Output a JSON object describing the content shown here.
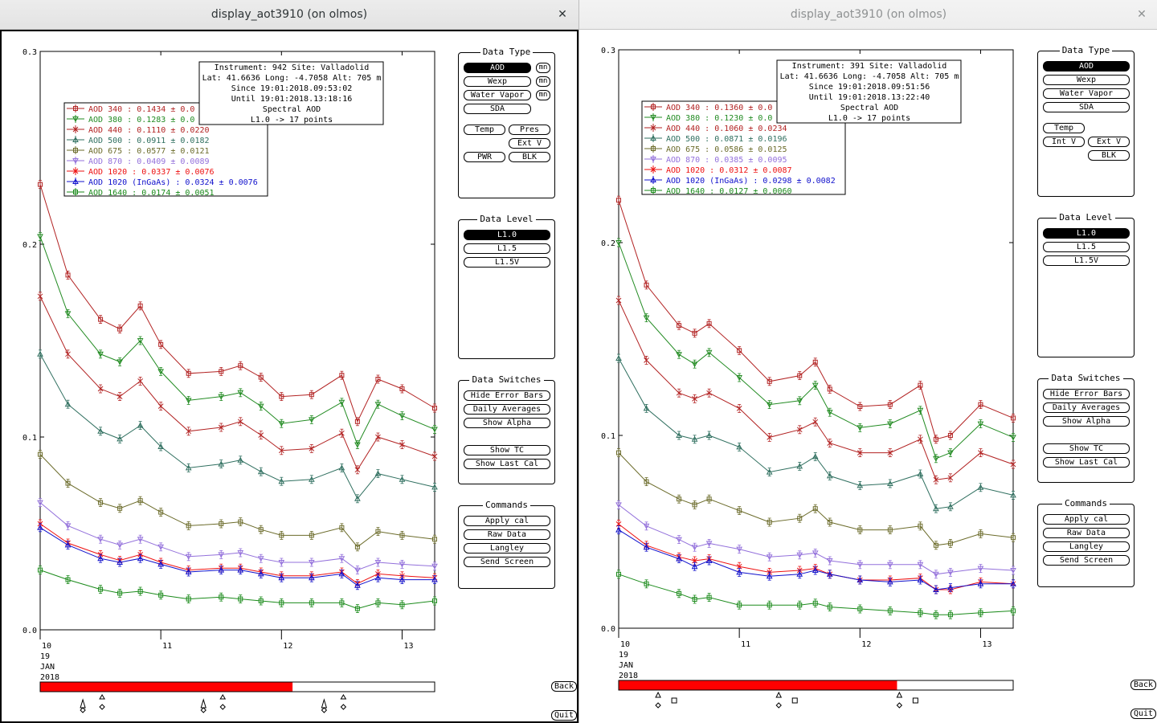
{
  "windows": [
    {
      "id": "L",
      "title": "display_aot3910 (on olmos)",
      "info": {
        "line1": "Instrument: 942 Site: Valladolid",
        "line2": "Lat: 41.6636 Long: -4.7058 Alt: 705 m",
        "line3": "Since 19:01:2018.09:53:02",
        "line4": "Until 19:01:2018.13:18:16",
        "line5": "Spectral AOD",
        "line6": "L1.0 -> 17 points"
      },
      "legend": [
        "AOD 340  : 0.1434 ± 0.0",
        "AOD 380  : 0.1283 ± 0.0",
        "AOD 440  : 0.1110 ± 0.0220",
        "AOD 500  : 0.0911 ± 0.0182",
        "AOD 675  : 0.0577 ± 0.0121",
        "AOD 870  : 0.0409 ± 0.0089",
        "AOD 1020  : 0.0337 ± 0.0076",
        "AOD 1020 (InGaAs)  : 0.0324 ± 0.0076",
        "AOD 1640  : 0.0174 ± 0.0051"
      ],
      "data_type_buttons": [
        {
          "label": "AOD",
          "on": true,
          "mn": "mn"
        },
        {
          "label": "Wexp",
          "on": false,
          "mn": "mn"
        },
        {
          "label": "Water Vapor",
          "on": false,
          "mn": "mn"
        },
        {
          "label": "SDA",
          "on": false,
          "mn": ""
        }
      ],
      "data_type_extra": [
        "Temp",
        "Pres",
        "Ext V",
        "PWR",
        "BLK"
      ],
      "progress": 0.64,
      "markers": "triangles-diamonds",
      "chart_data": {
        "type": "line",
        "y_ticks": [
          "0.3",
          "0.2",
          "0.1",
          "0.0"
        ],
        "ylim": [
          0,
          0.3
        ],
        "x_ticks": [
          "10",
          "11",
          "12",
          "13"
        ],
        "x_date": [
          "19",
          "JAN",
          "2018"
        ],
        "xlim": [
          10.0,
          13.27
        ],
        "x": [
          10.0,
          10.23,
          10.5,
          10.66,
          10.83,
          11.0,
          11.23,
          11.5,
          11.66,
          11.83,
          12.0,
          12.25,
          12.5,
          12.63,
          12.8,
          13.0,
          13.27
        ],
        "series": [
          {
            "name": "AOD 340",
            "color": "#b22222",
            "marker": "square",
            "values": [
              0.231,
              0.184,
              0.161,
              0.156,
              0.168,
              0.148,
              0.133,
              0.134,
              0.137,
              0.131,
              0.121,
              0.122,
              0.132,
              0.108,
              0.13,
              0.125,
              0.115
            ]
          },
          {
            "name": "AOD 380",
            "color": "#228b22",
            "marker": "tri-down",
            "values": [
              0.204,
              0.164,
              0.143,
              0.139,
              0.15,
              0.134,
              0.119,
              0.121,
              0.123,
              0.116,
              0.107,
              0.109,
              0.118,
              0.096,
              0.117,
              0.111,
              0.104
            ]
          },
          {
            "name": "AOD 440",
            "color": "#b22222",
            "marker": "x",
            "values": [
              0.173,
              0.143,
              0.125,
              0.121,
              0.129,
              0.116,
              0.103,
              0.105,
              0.108,
              0.101,
              0.093,
              0.094,
              0.102,
              0.083,
              0.1,
              0.096,
              0.09
            ]
          },
          {
            "name": "AOD 500",
            "color": "#2f6f5f",
            "marker": "tri-up",
            "values": [
              0.143,
              0.117,
              0.103,
              0.099,
              0.106,
              0.095,
              0.084,
              0.086,
              0.088,
              0.082,
              0.077,
              0.078,
              0.084,
              0.068,
              0.081,
              0.078,
              0.074
            ]
          },
          {
            "name": "AOD 675",
            "color": "#6b6b2a",
            "marker": "square",
            "values": [
              0.091,
              0.076,
              0.066,
              0.063,
              0.067,
              0.061,
              0.054,
              0.055,
              0.056,
              0.052,
              0.049,
              0.049,
              0.053,
              0.043,
              0.051,
              0.049,
              0.047
            ]
          },
          {
            "name": "AOD 870",
            "color": "#9370db",
            "marker": "tri-down",
            "values": [
              0.066,
              0.054,
              0.047,
              0.044,
              0.047,
              0.043,
              0.038,
              0.039,
              0.04,
              0.037,
              0.035,
              0.035,
              0.037,
              0.031,
              0.035,
              0.034,
              0.033
            ]
          },
          {
            "name": "AOD 1020",
            "color": "#ee1111",
            "marker": "x",
            "values": [
              0.055,
              0.045,
              0.039,
              0.036,
              0.039,
              0.035,
              0.031,
              0.032,
              0.032,
              0.03,
              0.028,
              0.028,
              0.03,
              0.024,
              0.029,
              0.028,
              0.027
            ]
          },
          {
            "name": "AOD 1020 (InGaAs)",
            "color": "#1010cc",
            "marker": "tri-up",
            "values": [
              0.053,
              0.044,
              0.037,
              0.035,
              0.037,
              0.034,
              0.03,
              0.031,
              0.031,
              0.029,
              0.027,
              0.027,
              0.029,
              0.023,
              0.027,
              0.026,
              0.026
            ]
          },
          {
            "name": "AOD 1640",
            "color": "#1a8a1a",
            "marker": "square",
            "values": [
              0.031,
              0.026,
              0.021,
              0.019,
              0.02,
              0.018,
              0.016,
              0.017,
              0.016,
              0.015,
              0.014,
              0.014,
              0.014,
              0.011,
              0.014,
              0.013,
              0.015
            ]
          }
        ]
      }
    },
    {
      "id": "R",
      "title": "display_aot3910 (on olmos)",
      "info": {
        "line1": "Instrument: 391 Site: Valladolid",
        "line2": "Lat: 41.6636 Long: -4.7058 Alt: 705 m",
        "line3": "Since 19:01:2018.09:51:56",
        "line4": "Until 19:01:2018.13:22:40",
        "line5": "Spectral AOD",
        "line6": "L1.0 -> 17 points"
      },
      "legend": [
        "AOD 340  : 0.1360 ± 0.0",
        "AOD 380  : 0.1230 ± 0.0",
        "AOD 440  : 0.1060 ± 0.0234",
        "AOD 500  : 0.0871 ± 0.0196",
        "AOD 675  : 0.0586 ± 0.0125",
        "AOD 870  : 0.0385 ± 0.0095",
        "AOD 1020  : 0.0312 ± 0.0087",
        "AOD 1020 (InGaAs)  : 0.0298 ± 0.0082",
        "AOD 1640  : 0.0127 ± 0.0060"
      ],
      "data_type_buttons": [
        {
          "label": "AOD",
          "on": true,
          "mn": ""
        },
        {
          "label": "Wexp",
          "on": false,
          "mn": ""
        },
        {
          "label": "Water Vapor",
          "on": false,
          "mn": ""
        },
        {
          "label": "SDA",
          "on": false,
          "mn": ""
        }
      ],
      "data_type_extra": [
        "Temp",
        "Int V",
        "Ext V",
        "BLK"
      ],
      "progress": 0.706,
      "markers": "triangles-squares",
      "chart_data": {
        "type": "line",
        "y_ticks": [
          "0.3",
          "0.2",
          "0.1",
          "0.0"
        ],
        "ylim": [
          0,
          0.3
        ],
        "x_ticks": [
          "10",
          "11",
          "12",
          "13"
        ],
        "x_date": [
          "19",
          "JAN",
          "2018"
        ],
        "xlim": [
          10.0,
          13.27
        ],
        "x": [
          10.0,
          10.23,
          10.5,
          10.63,
          10.75,
          11.0,
          11.25,
          11.5,
          11.63,
          11.75,
          12.0,
          12.25,
          12.5,
          12.63,
          12.75,
          13.0,
          13.27
        ],
        "series": [
          {
            "name": "AOD 340",
            "color": "#b22222",
            "marker": "square",
            "values": [
              0.222,
              0.178,
              0.157,
              0.153,
              0.158,
              0.144,
              0.128,
              0.131,
              0.138,
              0.124,
              0.115,
              0.116,
              0.126,
              0.098,
              0.1,
              0.116,
              0.109
            ]
          },
          {
            "name": "AOD 380",
            "color": "#228b22",
            "marker": "tri-down",
            "values": [
              0.2,
              0.161,
              0.142,
              0.137,
              0.143,
              0.13,
              0.116,
              0.118,
              0.126,
              0.112,
              0.104,
              0.106,
              0.113,
              0.088,
              0.091,
              0.106,
              0.099
            ]
          },
          {
            "name": "AOD 440",
            "color": "#b22222",
            "marker": "x",
            "values": [
              0.17,
              0.139,
              0.122,
              0.119,
              0.122,
              0.114,
              0.099,
              0.103,
              0.107,
              0.096,
              0.091,
              0.091,
              0.098,
              0.077,
              0.078,
              0.091,
              0.085
            ]
          },
          {
            "name": "AOD 500",
            "color": "#2f6f5f",
            "marker": "tri-up",
            "values": [
              0.14,
              0.114,
              0.1,
              0.098,
              0.1,
              0.094,
              0.081,
              0.084,
              0.089,
              0.079,
              0.074,
              0.075,
              0.08,
              0.062,
              0.063,
              0.073,
              0.069
            ]
          },
          {
            "name": "AOD 675",
            "color": "#6b6b2a",
            "marker": "square",
            "values": [
              0.091,
              0.076,
              0.067,
              0.064,
              0.067,
              0.061,
              0.055,
              0.057,
              0.062,
              0.055,
              0.051,
              0.051,
              0.053,
              0.043,
              0.044,
              0.049,
              0.047
            ]
          },
          {
            "name": "AOD 870",
            "color": "#9370db",
            "marker": "tri-down",
            "values": [
              0.064,
              0.053,
              0.046,
              0.042,
              0.044,
              0.041,
              0.037,
              0.038,
              0.039,
              0.035,
              0.033,
              0.033,
              0.033,
              0.028,
              0.029,
              0.031,
              0.03
            ]
          },
          {
            "name": "AOD 1020",
            "color": "#ee1111",
            "marker": "x",
            "values": [
              0.054,
              0.043,
              0.037,
              0.035,
              0.036,
              0.032,
              0.029,
              0.03,
              0.031,
              0.028,
              0.025,
              0.025,
              0.026,
              0.02,
              0.02,
              0.024,
              0.023
            ]
          },
          {
            "name": "AOD 1020 (InGaAs)",
            "color": "#1010cc",
            "marker": "tri-up",
            "values": [
              0.051,
              0.042,
              0.036,
              0.032,
              0.035,
              0.029,
              0.027,
              0.028,
              0.03,
              0.028,
              0.025,
              0.024,
              0.025,
              0.02,
              0.021,
              0.023,
              0.023
            ]
          },
          {
            "name": "AOD 1640",
            "color": "#1a8a1a",
            "marker": "square",
            "values": [
              0.028,
              0.023,
              0.018,
              0.015,
              0.016,
              0.012,
              0.012,
              0.012,
              0.013,
              0.011,
              0.01,
              0.009,
              0.008,
              0.007,
              0.007,
              0.008,
              0.009
            ]
          }
        ]
      }
    }
  ],
  "shared": {
    "data_type_title": "Data Type",
    "data_level_title": "Data Level",
    "data_levels": [
      "L1.0",
      "L1.5",
      "L1.5V"
    ],
    "data_switches_title": "Data Switches",
    "data_switches": [
      "Hide Error Bars",
      "Daily Averages",
      "Show Alpha",
      "Show TC",
      "Show Last Cal"
    ],
    "commands_title": "Commands",
    "commands": [
      "Apply cal",
      "Raw Data",
      "Langley",
      "Send Screen"
    ],
    "back_label": "Back",
    "quit_label": "Quit",
    "close_glyph": "✕"
  }
}
